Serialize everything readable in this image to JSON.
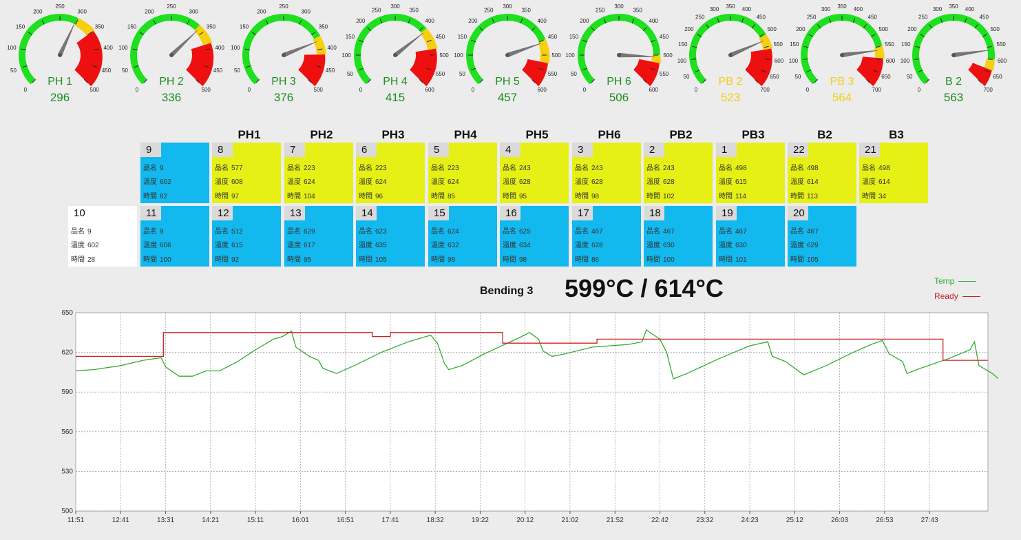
{
  "colors": {
    "green": "#1ee01e",
    "yellow": "#f5cf10",
    "red": "#ee1010",
    "cell_yellow": "#e6f014",
    "cell_blue": "#12b8ee",
    "temp_line": "#33aa33",
    "ready_line": "#cc2222"
  },
  "gauges": [
    {
      "name": "PH 1",
      "value": "296",
      "value_num": 296,
      "min": 0,
      "max": 500,
      "ticks": [
        "0",
        "50",
        "100",
        "150",
        "200",
        "250",
        "300",
        "350",
        "400",
        "450",
        "500"
      ],
      "yellow_from": 300,
      "red_from": 350,
      "label_color": "green"
    },
    {
      "name": "PH 2",
      "value": "336",
      "value_num": 336,
      "min": 0,
      "max": 500,
      "ticks": [
        "0",
        "50",
        "100",
        "150",
        "200",
        "250",
        "300",
        "350",
        "400",
        "450",
        "500"
      ],
      "yellow_from": 330,
      "red_from": 385,
      "label_color": "green"
    },
    {
      "name": "PH 3",
      "value": "376",
      "value_num": 376,
      "min": 0,
      "max": 500,
      "ticks": [
        "0",
        "50",
        "100",
        "150",
        "200",
        "250",
        "300",
        "350",
        "400",
        "450",
        "500"
      ],
      "yellow_from": 365,
      "red_from": 415,
      "label_color": "green"
    },
    {
      "name": "PH 4",
      "value": "415",
      "value_num": 415,
      "min": 0,
      "max": 600,
      "ticks": [
        "0",
        "50",
        "100",
        "150",
        "200",
        "250",
        "300",
        "350",
        "400",
        "450",
        "500",
        "550",
        "600"
      ],
      "yellow_from": 410,
      "red_from": 480,
      "label_color": "green"
    },
    {
      "name": "PH 5",
      "value": "457",
      "value_num": 457,
      "min": 0,
      "max": 600,
      "ticks": [
        "0",
        "50",
        "100",
        "150",
        "200",
        "250",
        "300",
        "350",
        "400",
        "450",
        "500",
        "550",
        "600"
      ],
      "yellow_from": 450,
      "red_from": 525,
      "label_color": "green"
    },
    {
      "name": "PH 6",
      "value": "506",
      "value_num": 506,
      "min": 0,
      "max": 600,
      "ticks": [
        "0",
        "50",
        "100",
        "150",
        "200",
        "250",
        "300",
        "350",
        "400",
        "450",
        "500",
        "550",
        "600"
      ],
      "yellow_from": 500,
      "red_from": 525,
      "label_color": "green"
    },
    {
      "name": "PB 2",
      "value": "523",
      "value_num": 523,
      "min": 0,
      "max": 700,
      "ticks": [
        "0",
        "50",
        "100",
        "150",
        "200",
        "250",
        "300",
        "350",
        "400",
        "450",
        "500",
        "550",
        "600",
        "650",
        "700"
      ],
      "yellow_from": 505,
      "red_from": 560,
      "label_color": "yellow"
    },
    {
      "name": "PB 3",
      "value": "564",
      "value_num": 564,
      "min": 0,
      "max": 700,
      "ticks": [
        "0",
        "50",
        "100",
        "150",
        "200",
        "250",
        "300",
        "350",
        "400",
        "450",
        "500",
        "550",
        "600",
        "650",
        "700"
      ],
      "yellow_from": 550,
      "red_from": 595,
      "label_color": "yellow"
    },
    {
      "name": "B 2",
      "value": "563",
      "value_num": 563,
      "min": 0,
      "max": 700,
      "ticks": [
        "0",
        "50",
        "100",
        "150",
        "200",
        "250",
        "300",
        "350",
        "400",
        "450",
        "500",
        "550",
        "600",
        "650",
        "700"
      ],
      "yellow_from": 600,
      "red_from": 640,
      "label_color": "green"
    }
  ],
  "column_headers": [
    "PH1",
    "PH2",
    "PH3",
    "PH4",
    "PH5",
    "PH6",
    "PB2",
    "PB3",
    "B2",
    "B3"
  ],
  "field_labels": {
    "name": "品名",
    "temp": "溫度",
    "time": "時間"
  },
  "top_row": [
    {
      "num": "9",
      "name": "9",
      "temp": "602",
      "time": "82",
      "color": "blue"
    },
    {
      "num": "8",
      "name": "577",
      "temp": "608",
      "time": "97",
      "color": "yellow"
    },
    {
      "num": "7",
      "name": "223",
      "temp": "624",
      "time": "104",
      "color": "yellow"
    },
    {
      "num": "6",
      "name": "223",
      "temp": "624",
      "time": "96",
      "color": "yellow"
    },
    {
      "num": "5",
      "name": "223",
      "temp": "624",
      "time": "85",
      "color": "yellow"
    },
    {
      "num": "4",
      "name": "243",
      "temp": "628",
      "time": "95",
      "color": "yellow"
    },
    {
      "num": "3",
      "name": "243",
      "temp": "628",
      "time": "98",
      "color": "yellow"
    },
    {
      "num": "2",
      "name": "243",
      "temp": "628",
      "time": "102",
      "color": "yellow"
    },
    {
      "num": "1",
      "name": "498",
      "temp": "615",
      "time": "114",
      "color": "yellow"
    },
    {
      "num": "22",
      "name": "498",
      "temp": "614",
      "time": "113",
      "color": "yellow"
    },
    {
      "num": "21",
      "name": "498",
      "temp": "614",
      "time": "34",
      "color": "yellow"
    }
  ],
  "bottom_row": [
    {
      "num": "10",
      "name": "9",
      "temp": "602",
      "time": "28",
      "color": "white"
    },
    {
      "num": "11",
      "name": "9",
      "temp": "606",
      "time": "100",
      "color": "blue"
    },
    {
      "num": "12",
      "name": "512",
      "temp": "615",
      "time": "92",
      "color": "blue"
    },
    {
      "num": "13",
      "name": "629",
      "temp": "617",
      "time": "95",
      "color": "blue"
    },
    {
      "num": "14",
      "name": "623",
      "temp": "635",
      "time": "105",
      "color": "blue"
    },
    {
      "num": "15",
      "name": "624",
      "temp": "632",
      "time": "98",
      "color": "blue"
    },
    {
      "num": "16",
      "name": "625",
      "temp": "634",
      "time": "98",
      "color": "blue"
    },
    {
      "num": "17",
      "name": "467",
      "temp": "628",
      "time": "86",
      "color": "blue"
    },
    {
      "num": "18",
      "name": "467",
      "temp": "630",
      "time": "100",
      "color": "blue"
    },
    {
      "num": "19",
      "name": "467",
      "temp": "630",
      "time": "101",
      "color": "blue"
    },
    {
      "num": "20",
      "name": "467",
      "temp": "629",
      "time": "105",
      "color": "blue"
    }
  ],
  "bending": {
    "label": "Bending 3",
    "temp": "599°C / 614°C"
  },
  "legend": {
    "temp": "Temp",
    "ready": "Ready"
  },
  "chart_data": {
    "type": "line",
    "ylim": [
      500,
      650
    ],
    "yticks": [
      "650",
      "620",
      "590",
      "560",
      "530",
      "500"
    ],
    "xlabels": [
      "11:51",
      "12:41",
      "13:31",
      "14:21",
      "15:11",
      "16:01",
      "16:51",
      "17:41",
      "18:32",
      "19:22",
      "20:12",
      "21:02",
      "21:52",
      "22:42",
      "23:32",
      "24:23",
      "25:12",
      "26:03",
      "26:53",
      "27:43"
    ],
    "xmax": 20.3,
    "series": [
      {
        "name": "Temp",
        "color": "#33aa33",
        "points": [
          [
            0,
            606
          ],
          [
            0.4,
            607
          ],
          [
            1.0,
            610
          ],
          [
            1.5,
            614
          ],
          [
            1.9,
            616
          ],
          [
            2.0,
            609
          ],
          [
            2.3,
            602
          ],
          [
            2.6,
            602
          ],
          [
            2.9,
            606
          ],
          [
            3.2,
            606
          ],
          [
            3.6,
            613
          ],
          [
            4.0,
            622
          ],
          [
            4.4,
            630
          ],
          [
            4.6,
            632
          ],
          [
            4.8,
            636
          ],
          [
            4.9,
            624
          ],
          [
            5.2,
            617
          ],
          [
            5.4,
            614
          ],
          [
            5.5,
            608
          ],
          [
            5.8,
            604
          ],
          [
            6.2,
            610
          ],
          [
            6.8,
            620
          ],
          [
            7.4,
            628
          ],
          [
            7.9,
            633
          ],
          [
            8.05,
            627
          ],
          [
            8.2,
            612
          ],
          [
            8.3,
            607
          ],
          [
            8.6,
            610
          ],
          [
            9.1,
            619
          ],
          [
            9.8,
            630
          ],
          [
            10.1,
            635
          ],
          [
            10.3,
            630
          ],
          [
            10.4,
            621
          ],
          [
            10.6,
            617
          ],
          [
            10.9,
            619
          ],
          [
            11.5,
            624
          ],
          [
            11.9,
            625
          ],
          [
            12.3,
            626
          ],
          [
            12.6,
            628
          ],
          [
            12.7,
            637
          ],
          [
            13.0,
            630
          ],
          [
            13.15,
            620
          ],
          [
            13.3,
            600
          ],
          [
            13.6,
            604
          ],
          [
            14.3,
            615
          ],
          [
            15.0,
            625
          ],
          [
            15.4,
            628
          ],
          [
            15.5,
            617
          ],
          [
            15.8,
            613
          ],
          [
            16.0,
            608
          ],
          [
            16.2,
            603
          ],
          [
            16.7,
            610
          ],
          [
            17.3,
            620
          ],
          [
            17.7,
            626
          ],
          [
            17.95,
            629
          ],
          [
            18.1,
            619
          ],
          [
            18.4,
            613
          ],
          [
            18.5,
            604
          ],
          [
            18.8,
            608
          ],
          [
            19.4,
            615
          ],
          [
            19.9,
            622
          ],
          [
            20.0,
            628
          ],
          [
            20.1,
            610
          ],
          [
            20.4,
            604
          ],
          [
            20.6,
            598
          ],
          [
            20.8,
            594
          ],
          [
            21.0,
            594
          ]
        ]
      },
      {
        "name": "Ready",
        "color": "#cc2222",
        "points": [
          [
            0,
            617
          ],
          [
            1.95,
            617
          ],
          [
            1.95,
            635
          ],
          [
            6.6,
            635
          ],
          [
            6.6,
            632
          ],
          [
            7.0,
            632
          ],
          [
            7.0,
            635
          ],
          [
            9.5,
            635
          ],
          [
            9.5,
            627
          ],
          [
            11.6,
            627
          ],
          [
            11.6,
            630
          ],
          [
            19.3,
            630
          ],
          [
            19.3,
            614
          ],
          [
            20.3,
            614
          ]
        ]
      }
    ]
  }
}
